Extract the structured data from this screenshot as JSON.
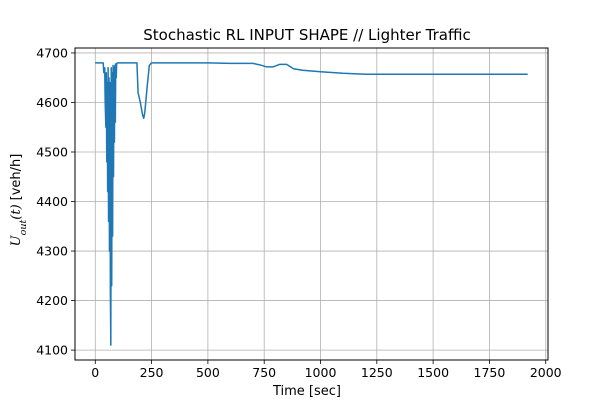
{
  "chart_data": {
    "type": "line",
    "title": "Stochastic RL INPUT SHAPE // Lighter Traffic",
    "xlabel": "Time [sec]",
    "ylabel": {
      "var": "U",
      "sub": "out",
      "arg": "(t)",
      "unit": "[veh/h]"
    },
    "xlim": [
      -90,
      2010
    ],
    "ylim": [
      4080,
      4710
    ],
    "xticks": [
      0,
      250,
      500,
      750,
      1000,
      1250,
      1500,
      1750,
      2000
    ],
    "yticks": [
      4100,
      4200,
      4300,
      4400,
      4500,
      4600,
      4700
    ],
    "grid": true,
    "colors": {
      "line": "#1f77b4",
      "grid": "#b0b0b0"
    },
    "series": [
      {
        "x": [
          0,
          35,
          38,
          42,
          44,
          47,
          49,
          51,
          53,
          55,
          57,
          59,
          61,
          63,
          65,
          67,
          69,
          71,
          73,
          75,
          77,
          79,
          81,
          83,
          85,
          87,
          89,
          91,
          93,
          95,
          100,
          110,
          185,
          190,
          200,
          210,
          215,
          220,
          230,
          240,
          250,
          300,
          400,
          500,
          600,
          650,
          700,
          730,
          760,
          790,
          820,
          850,
          880,
          920,
          1000,
          1100,
          1200,
          1300,
          1500,
          1700,
          1920
        ],
        "y": [
          4680,
          4680,
          4660,
          4670,
          4600,
          4550,
          4660,
          4480,
          4640,
          4420,
          4670,
          4360,
          4650,
          4300,
          4640,
          4220,
          4110,
          4670,
          4230,
          4660,
          4330,
          4675,
          4450,
          4670,
          4520,
          4675,
          4560,
          4678,
          4650,
          4679,
          4680,
          4680,
          4680,
          4620,
          4600,
          4575,
          4568,
          4580,
          4630,
          4675,
          4680,
          4680,
          4680,
          4680,
          4679,
          4679,
          4679,
          4676,
          4672,
          4672,
          4677,
          4677,
          4668,
          4665,
          4662,
          4659,
          4657,
          4657,
          4657,
          4657,
          4657
        ]
      }
    ]
  }
}
